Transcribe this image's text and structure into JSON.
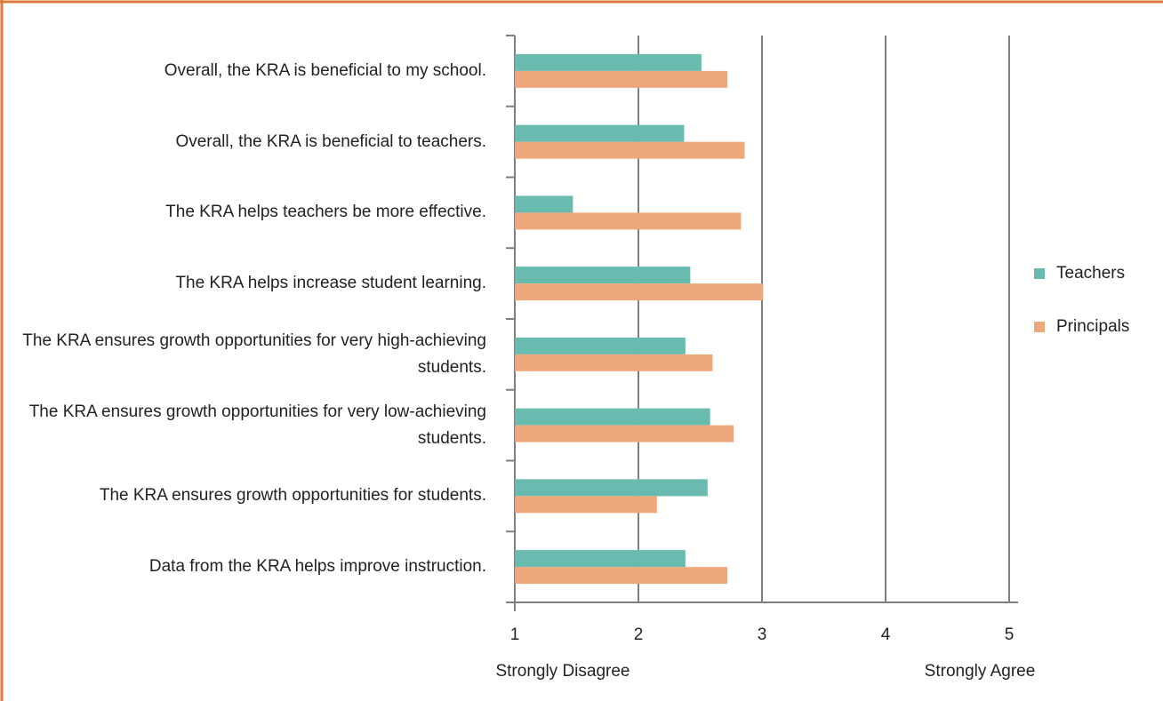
{
  "chart_data": {
    "type": "hbar",
    "categories": [
      "Overall, the KRA is beneficial to my school.",
      "Overall, the KRA is beneficial to teachers.",
      "The KRA helps teachers be more effective.",
      "The KRA helps increase student learning.",
      "The KRA ensures growth opportunities for very high-achieving students.",
      "The KRA ensures growth opportunities for very low-achieving students.",
      "The KRA ensures growth opportunities for students.",
      "Data from the KRA helps improve instruction."
    ],
    "series": [
      {
        "name": "Teachers",
        "color": "#68bbae",
        "values": [
          2.51,
          2.37,
          1.47,
          2.42,
          2.38,
          2.58,
          2.56,
          2.38
        ]
      },
      {
        "name": "Principals",
        "color": "#eda97b",
        "values": [
          2.72,
          2.86,
          2.83,
          3.01,
          2.6,
          2.77,
          2.15,
          2.72
        ]
      }
    ],
    "xlim": [
      1,
      5
    ],
    "xticks": [
      1,
      2,
      3,
      4,
      5
    ],
    "axis_annotations": [
      "Strongly Disagree",
      "Strongly Agree"
    ],
    "grid": true,
    "legend": "right"
  }
}
